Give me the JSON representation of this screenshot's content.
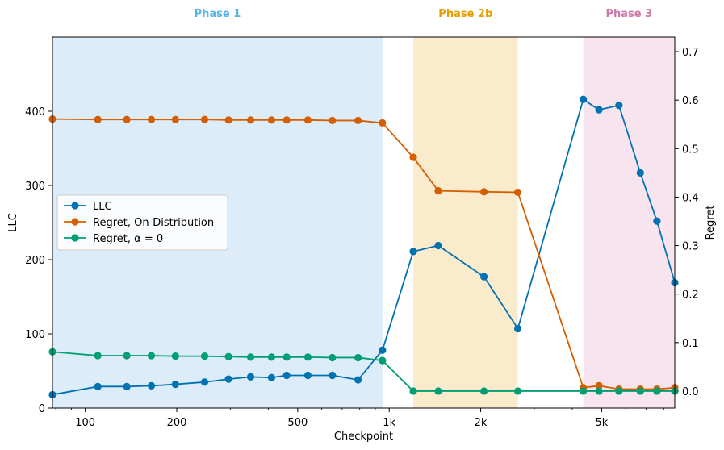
{
  "chart_data": {
    "type": "line",
    "xlabel": "Checkpoint",
    "ylabel_left": "LLC",
    "ylabel_right": "Regret",
    "x_scale": "log",
    "xlim": [
      78,
      8700
    ],
    "ylim_left": [
      0,
      500
    ],
    "ylim_right": [
      -0.035,
      0.73
    ],
    "x_ticks": [
      {
        "value": 100,
        "label": "100"
      },
      {
        "value": 200,
        "label": "200"
      },
      {
        "value": 500,
        "label": "500"
      },
      {
        "value": 1000,
        "label": "1k"
      },
      {
        "value": 2000,
        "label": "2k"
      },
      {
        "value": 5000,
        "label": "5k"
      }
    ],
    "y_left_ticks": [
      0,
      100,
      200,
      300,
      400
    ],
    "y_right_ticks": [
      {
        "value": 0.0,
        "label": "0.0"
      },
      {
        "value": 0.1,
        "label": "0.1"
      },
      {
        "value": 0.2,
        "label": "0.2"
      },
      {
        "value": 0.3,
        "label": "0.3"
      },
      {
        "value": 0.4,
        "label": "0.4"
      },
      {
        "value": 0.5,
        "label": "0.5"
      },
      {
        "value": 0.6,
        "label": "0.6"
      },
      {
        "value": 0.7,
        "label": "0.7"
      }
    ],
    "phases": [
      {
        "label": "Phase 1",
        "start": 78,
        "end": 950,
        "fill": "#dcecf8",
        "text_color": "#56b4e9"
      },
      {
        "label": "Phase 2b",
        "start": 1200,
        "end": 2650,
        "fill": "#faebcc",
        "text_color": "#e69f00"
      },
      {
        "label": "Phase 3",
        "start": 4350,
        "end": 8700,
        "fill": "#f7e4ef",
        "text_color": "#cc79a7"
      }
    ],
    "series": [
      {
        "name": "LLC",
        "axis": "left",
        "color": "#0072b2",
        "x": [
          78,
          110,
          137,
          165,
          198,
          247,
          296,
          350,
          410,
          460,
          540,
          650,
          790,
          950,
          1200,
          1450,
          2050,
          2650,
          4350,
          4900,
          5700,
          6700,
          7600,
          8700
        ],
        "y": [
          18,
          29,
          29,
          30,
          32,
          35,
          39,
          42,
          41,
          44,
          44,
          44,
          38,
          78,
          211,
          219,
          177,
          107,
          416,
          402,
          408,
          317,
          252,
          169
        ]
      },
      {
        "name": "Regret, On-Distribution",
        "axis": "right",
        "color": "#d55e00",
        "x": [
          78,
          110,
          137,
          165,
          198,
          247,
          296,
          350,
          410,
          460,
          540,
          650,
          790,
          950,
          1200,
          1450,
          2050,
          2650,
          4350,
          4900,
          5700,
          6700,
          7600,
          8700
        ],
        "y": [
          0.561,
          0.56,
          0.56,
          0.56,
          0.56,
          0.56,
          0.559,
          0.559,
          0.559,
          0.559,
          0.559,
          0.558,
          0.558,
          0.553,
          0.482,
          0.413,
          0.411,
          0.41,
          0.007,
          0.011,
          0.004,
          0.004,
          0.004,
          0.007
        ]
      },
      {
        "name": "Regret, α = 0",
        "axis": "right",
        "color": "#009e73",
        "x": [
          78,
          110,
          137,
          165,
          198,
          247,
          296,
          350,
          410,
          460,
          540,
          650,
          790,
          950,
          1200,
          1450,
          2050,
          2650,
          4350,
          4900,
          5700,
          6700,
          7600,
          8700
        ],
        "y": [
          0.081,
          0.073,
          0.073,
          0.073,
          0.072,
          0.072,
          0.071,
          0.07,
          0.07,
          0.07,
          0.07,
          0.069,
          0.069,
          0.063,
          0.0,
          0.0,
          0.0,
          0.0,
          0.0,
          0.0,
          0.0,
          0.0,
          0.0,
          0.0
        ]
      }
    ],
    "legend": {
      "position": "center-left",
      "entries": [
        "LLC",
        "Regret, On-Distribution",
        "Regret, α = 0"
      ]
    }
  }
}
